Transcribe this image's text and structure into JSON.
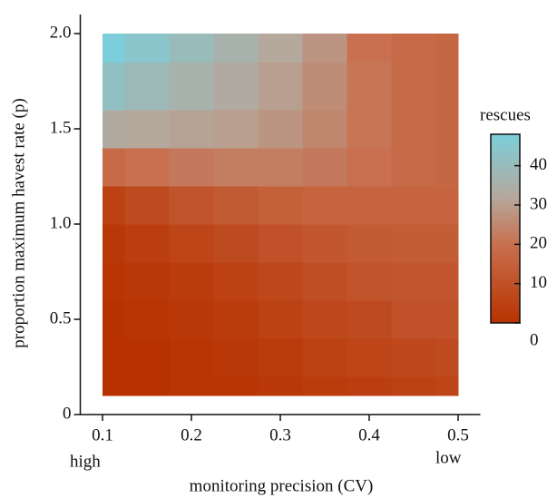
{
  "chart_data": {
    "type": "heatmap",
    "xlabel": "monitoring precision (CV)",
    "ylabel": "proportion maximum havest rate (p)",
    "annotations": [
      "high",
      "low"
    ],
    "x": [
      0.1,
      0.15,
      0.2,
      0.25,
      0.3,
      0.35,
      0.4,
      0.45,
      0.5
    ],
    "y": [
      0.1,
      0.3,
      0.5,
      0.7,
      0.9,
      1.1,
      1.3,
      1.5,
      1.7,
      2.0
    ],
    "z": [
      [
        0,
        0,
        1,
        1,
        2,
        3,
        4,
        5,
        6
      ],
      [
        0,
        0,
        1,
        2,
        3,
        5,
        6,
        7,
        8
      ],
      [
        0,
        1,
        2,
        3,
        5,
        7,
        8,
        10,
        10
      ],
      [
        1,
        2,
        3,
        5,
        7,
        9,
        11,
        12,
        12
      ],
      [
        2,
        4,
        6,
        8,
        10,
        12,
        13,
        14,
        14
      ],
      [
        5,
        8,
        11,
        13,
        15,
        16,
        16,
        16,
        16
      ],
      [
        18,
        20,
        22,
        23,
        23,
        22,
        20,
        18,
        17
      ],
      [
        33,
        32,
        31,
        30,
        28,
        25,
        21,
        18,
        17
      ],
      [
        42,
        39,
        36,
        33,
        30,
        26,
        21,
        18,
        17
      ],
      [
        48,
        44,
        40,
        36,
        32,
        28,
        20,
        18,
        17
      ]
    ],
    "xlim": [
      0.075,
      0.525
    ],
    "xticks": [
      0.1,
      0.2,
      0.3,
      0.4,
      0.5
    ],
    "ylim": [
      0,
      2.1
    ],
    "yticks": [
      0,
      {
        "value": 0.5,
        "label": "0.5"
      },
      {
        "value": 1,
        "label": "1.0"
      },
      {
        "value": 1.5,
        "label": "1.5"
      },
      {
        "value": 2,
        "label": "2.0"
      }
    ],
    "colorbar": {
      "title": "rescues",
      "lim": [
        0,
        48
      ],
      "ticks": [
        0,
        10,
        20,
        30,
        40
      ]
    },
    "colorscale": [
      [
        0,
        "#b83200"
      ],
      [
        20,
        "#c8704f"
      ],
      [
        32,
        "#b5a89c"
      ],
      [
        48,
        "#7ccfda"
      ]
    ]
  }
}
